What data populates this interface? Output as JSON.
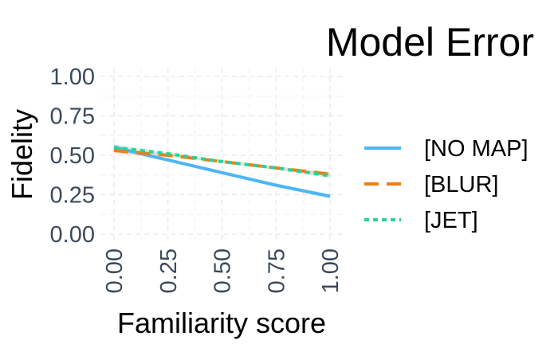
{
  "chart_data": {
    "type": "line",
    "title": "Model Error",
    "xlabel": "Familiarity score",
    "ylabel": "Fidelity",
    "xlim": [
      0,
      1
    ],
    "ylim": [
      0,
      1
    ],
    "x_ticks": [
      "0.00",
      "0.25",
      "0.50",
      "0.75",
      "1.00"
    ],
    "y_ticks": [
      "0.00",
      "0.25",
      "0.50",
      "0.75",
      "1.00"
    ],
    "grid": true,
    "legend_position": "right",
    "series": [
      {
        "name": "[NO MAP]",
        "color": "#4db6f5",
        "dash": "solid",
        "x": [
          0.0,
          0.25,
          0.5,
          0.75,
          1.0
        ],
        "y": [
          0.55,
          0.47,
          0.39,
          0.31,
          0.24
        ],
        "ci": [
          0.02,
          0.01,
          0.01,
          0.01,
          0.015
        ]
      },
      {
        "name": "[BLUR]",
        "color": "#f07d12",
        "dash": "dashed",
        "x": [
          0.0,
          0.25,
          0.5,
          0.75,
          1.0
        ],
        "y": [
          0.53,
          0.5,
          0.46,
          0.42,
          0.38
        ],
        "ci": [
          0.02,
          0.01,
          0.01,
          0.01,
          0.015
        ]
      },
      {
        "name": "[JET]",
        "color": "#2bd19a",
        "dash": "dotted",
        "x": [
          0.0,
          0.25,
          0.5,
          0.75,
          1.0
        ],
        "y": [
          0.55,
          0.51,
          0.46,
          0.42,
          0.37
        ],
        "ci": [
          0.02,
          0.01,
          0.01,
          0.01,
          0.015
        ]
      }
    ]
  }
}
